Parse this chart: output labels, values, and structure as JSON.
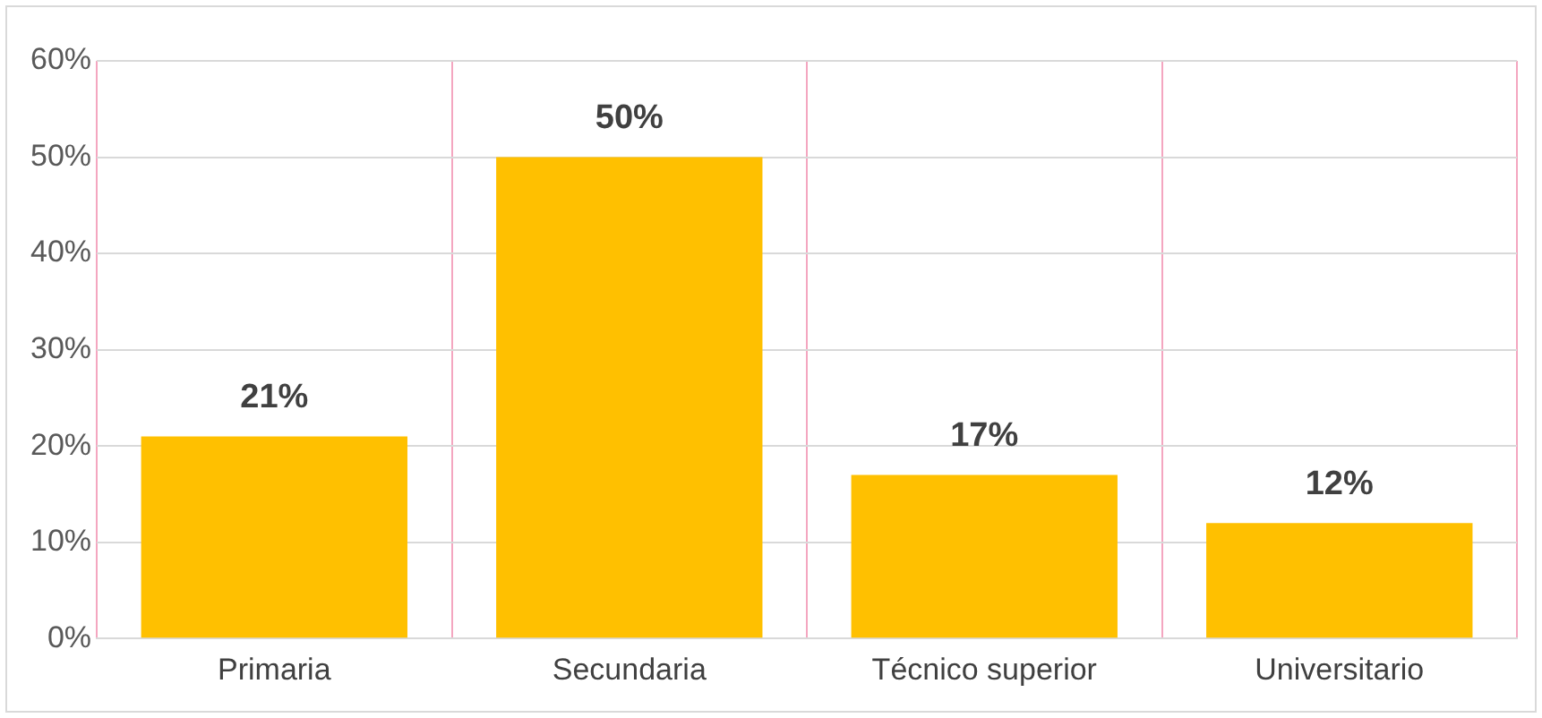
{
  "chart_data": {
    "type": "bar",
    "categories": [
      "Primaria",
      "Secundaria",
      "Técnico superior",
      "Universitario"
    ],
    "values": [
      21,
      50,
      17,
      12
    ],
    "color": "#ffc000",
    "value_labels": [
      "21%",
      "50%",
      "17%",
      "12%"
    ],
    "ylim": [
      0,
      60
    ],
    "yticks": [
      {
        "value": 0,
        "label": "0%"
      },
      {
        "value": 10,
        "label": "10%"
      },
      {
        "value": 20,
        "label": "20%"
      },
      {
        "value": 30,
        "label": "30%"
      },
      {
        "value": 40,
        "label": "40%"
      },
      {
        "value": 50,
        "label": "50%"
      },
      {
        "value": 60,
        "label": "60%"
      }
    ],
    "grid": true,
    "legend": false
  }
}
